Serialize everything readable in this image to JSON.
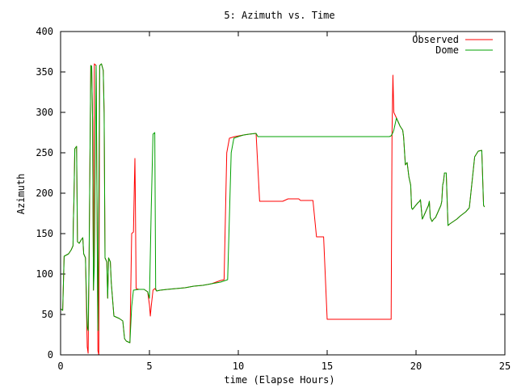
{
  "chart_data": {
    "type": "line",
    "title": "5: Azimuth vs. Time",
    "xlabel": "time (Elapse Hours)",
    "ylabel": "Azimuth",
    "xlim": [
      0,
      25
    ],
    "ylim": [
      0,
      400
    ],
    "xticks": [
      0,
      5,
      10,
      15,
      20,
      25
    ],
    "yticks": [
      0,
      50,
      100,
      150,
      200,
      250,
      300,
      350,
      400
    ],
    "grid": false,
    "legend_position": "top-right",
    "series": [
      {
        "name": "Observed",
        "color": "#ff0000",
        "points": [
          [
            0.0,
            57
          ],
          [
            0.12,
            55
          ],
          [
            0.2,
            122
          ],
          [
            0.45,
            125
          ],
          [
            0.6,
            130
          ],
          [
            0.7,
            135
          ],
          [
            0.72,
            165
          ],
          [
            0.75,
            190
          ],
          [
            0.8,
            255
          ],
          [
            0.9,
            258
          ],
          [
            0.95,
            140
          ],
          [
            1.05,
            138
          ],
          [
            1.15,
            142
          ],
          [
            1.25,
            145
          ],
          [
            1.3,
            125
          ],
          [
            1.4,
            120
          ],
          [
            1.5,
            10
          ],
          [
            1.55,
            2
          ],
          [
            1.6,
            110
          ],
          [
            1.7,
            358
          ],
          [
            1.75,
            357
          ],
          [
            1.8,
            290
          ],
          [
            1.85,
            80
          ],
          [
            1.9,
            360
          ],
          [
            2.0,
            358
          ],
          [
            2.1,
            5
          ],
          [
            2.15,
            0
          ],
          [
            2.2,
            358
          ],
          [
            2.3,
            360
          ],
          [
            2.4,
            352
          ],
          [
            2.45,
            300
          ],
          [
            2.5,
            120
          ],
          [
            2.6,
            115
          ],
          [
            2.65,
            70
          ],
          [
            2.7,
            120
          ],
          [
            2.8,
            115
          ],
          [
            2.85,
            90
          ],
          [
            3.0,
            48
          ],
          [
            3.3,
            45
          ],
          [
            3.5,
            42
          ],
          [
            3.6,
            20
          ],
          [
            3.7,
            17
          ],
          [
            3.8,
            16
          ],
          [
            3.9,
            15
          ],
          [
            4.0,
            150
          ],
          [
            4.1,
            152
          ],
          [
            4.15,
            210
          ],
          [
            4.18,
            243
          ],
          [
            4.2,
            210
          ],
          [
            4.25,
            82
          ],
          [
            4.4,
            81
          ],
          [
            4.7,
            81
          ],
          [
            4.9,
            78
          ],
          [
            5.0,
            62
          ],
          [
            5.05,
            48
          ],
          [
            5.1,
            60
          ],
          [
            5.2,
            80
          ],
          [
            5.3,
            82
          ],
          [
            5.4,
            79
          ],
          [
            5.6,
            80
          ],
          [
            6.0,
            81
          ],
          [
            7.0,
            83
          ],
          [
            7.5,
            85
          ],
          [
            8.0,
            86
          ],
          [
            8.5,
            88
          ],
          [
            9.0,
            92
          ],
          [
            9.2,
            93
          ],
          [
            9.35,
            250
          ],
          [
            9.5,
            268
          ],
          [
            9.8,
            270
          ],
          [
            10.3,
            272
          ],
          [
            10.6,
            273
          ],
          [
            11.0,
            274
          ],
          [
            11.2,
            190
          ],
          [
            12.0,
            190
          ],
          [
            12.5,
            190
          ],
          [
            12.8,
            193
          ],
          [
            13.4,
            193
          ],
          [
            13.5,
            191
          ],
          [
            14.2,
            191
          ],
          [
            14.4,
            146
          ],
          [
            14.8,
            146
          ],
          [
            15.0,
            44
          ],
          [
            18.6,
            44
          ],
          [
            18.65,
            275
          ],
          [
            18.7,
            346
          ],
          [
            18.75,
            300
          ],
          [
            18.9,
            293
          ],
          [
            19.1,
            283
          ],
          [
            19.25,
            278
          ],
          [
            19.3,
            270
          ],
          [
            19.4,
            235
          ],
          [
            19.5,
            238
          ],
          [
            19.6,
            220
          ],
          [
            19.7,
            210
          ],
          [
            19.75,
            182
          ],
          [
            19.8,
            180
          ],
          [
            20.1,
            188
          ],
          [
            20.2,
            190
          ],
          [
            20.25,
            192
          ],
          [
            20.35,
            168
          ],
          [
            20.4,
            170
          ],
          [
            20.5,
            175
          ],
          [
            20.6,
            180
          ],
          [
            20.7,
            185
          ],
          [
            20.75,
            190
          ],
          [
            20.8,
            170
          ],
          [
            20.9,
            165
          ],
          [
            21.0,
            168
          ],
          [
            21.1,
            170
          ],
          [
            21.2,
            175
          ],
          [
            21.3,
            180
          ],
          [
            21.4,
            185
          ],
          [
            21.45,
            190
          ],
          [
            21.5,
            210
          ],
          [
            21.55,
            215
          ],
          [
            21.6,
            225
          ],
          [
            21.7,
            225
          ],
          [
            21.8,
            160
          ],
          [
            21.9,
            162
          ],
          [
            22.3,
            168
          ],
          [
            22.5,
            172
          ],
          [
            22.8,
            177
          ],
          [
            23.0,
            182
          ],
          [
            23.3,
            245
          ],
          [
            23.5,
            252
          ],
          [
            23.7,
            253
          ],
          [
            23.8,
            185
          ],
          [
            23.85,
            183
          ]
        ]
      },
      {
        "name": "Dome",
        "color": "#00a000",
        "points": [
          [
            0.0,
            57
          ],
          [
            0.12,
            55
          ],
          [
            0.2,
            122
          ],
          [
            0.45,
            125
          ],
          [
            0.6,
            130
          ],
          [
            0.7,
            135
          ],
          [
            0.72,
            165
          ],
          [
            0.75,
            190
          ],
          [
            0.8,
            255
          ],
          [
            0.9,
            258
          ],
          [
            0.95,
            140
          ],
          [
            1.05,
            138
          ],
          [
            1.15,
            142
          ],
          [
            1.25,
            145
          ],
          [
            1.3,
            125
          ],
          [
            1.4,
            120
          ],
          [
            1.5,
            35
          ],
          [
            1.55,
            30
          ],
          [
            1.6,
            110
          ],
          [
            1.7,
            358
          ],
          [
            1.75,
            357
          ],
          [
            1.8,
            290
          ],
          [
            1.85,
            80
          ],
          [
            1.9,
            110
          ],
          [
            2.0,
            358
          ],
          [
            2.1,
            30
          ],
          [
            2.2,
            358
          ],
          [
            2.3,
            360
          ],
          [
            2.4,
            352
          ],
          [
            2.45,
            300
          ],
          [
            2.5,
            120
          ],
          [
            2.6,
            115
          ],
          [
            2.65,
            70
          ],
          [
            2.7,
            120
          ],
          [
            2.8,
            115
          ],
          [
            2.85,
            90
          ],
          [
            3.0,
            48
          ],
          [
            3.3,
            45
          ],
          [
            3.5,
            42
          ],
          [
            3.6,
            20
          ],
          [
            3.7,
            17
          ],
          [
            3.8,
            16
          ],
          [
            3.9,
            15
          ],
          [
            4.0,
            60
          ],
          [
            4.1,
            80
          ],
          [
            4.4,
            81
          ],
          [
            4.7,
            81
          ],
          [
            4.9,
            78
          ],
          [
            5.0,
            70
          ],
          [
            5.1,
            180
          ],
          [
            5.2,
            273
          ],
          [
            5.3,
            275
          ],
          [
            5.35,
            82
          ],
          [
            5.4,
            79
          ],
          [
            5.6,
            80
          ],
          [
            6.0,
            81
          ],
          [
            7.0,
            83
          ],
          [
            7.5,
            85
          ],
          [
            8.0,
            86
          ],
          [
            8.5,
            88
          ],
          [
            9.0,
            90
          ],
          [
            9.4,
            93
          ],
          [
            9.6,
            250
          ],
          [
            9.75,
            268
          ],
          [
            10.0,
            270
          ],
          [
            10.3,
            272
          ],
          [
            10.6,
            273
          ],
          [
            11.0,
            274
          ],
          [
            11.1,
            270
          ],
          [
            18.5,
            270
          ],
          [
            18.6,
            271
          ],
          [
            18.7,
            275
          ],
          [
            18.75,
            278
          ],
          [
            18.9,
            293
          ],
          [
            19.1,
            283
          ],
          [
            19.25,
            278
          ],
          [
            19.3,
            270
          ],
          [
            19.4,
            235
          ],
          [
            19.5,
            238
          ],
          [
            19.6,
            220
          ],
          [
            19.7,
            210
          ],
          [
            19.75,
            182
          ],
          [
            19.8,
            180
          ],
          [
            20.1,
            188
          ],
          [
            20.2,
            190
          ],
          [
            20.25,
            192
          ],
          [
            20.35,
            168
          ],
          [
            20.4,
            170
          ],
          [
            20.5,
            175
          ],
          [
            20.6,
            180
          ],
          [
            20.7,
            185
          ],
          [
            20.75,
            190
          ],
          [
            20.8,
            170
          ],
          [
            20.9,
            165
          ],
          [
            21.0,
            168
          ],
          [
            21.1,
            170
          ],
          [
            21.2,
            175
          ],
          [
            21.3,
            180
          ],
          [
            21.4,
            185
          ],
          [
            21.45,
            190
          ],
          [
            21.5,
            210
          ],
          [
            21.55,
            215
          ],
          [
            21.6,
            225
          ],
          [
            21.7,
            225
          ],
          [
            21.8,
            160
          ],
          [
            21.9,
            162
          ],
          [
            22.3,
            168
          ],
          [
            22.5,
            172
          ],
          [
            22.8,
            177
          ],
          [
            23.0,
            182
          ],
          [
            23.3,
            245
          ],
          [
            23.5,
            252
          ],
          [
            23.7,
            253
          ],
          [
            23.8,
            185
          ],
          [
            23.85,
            183
          ]
        ]
      }
    ]
  }
}
